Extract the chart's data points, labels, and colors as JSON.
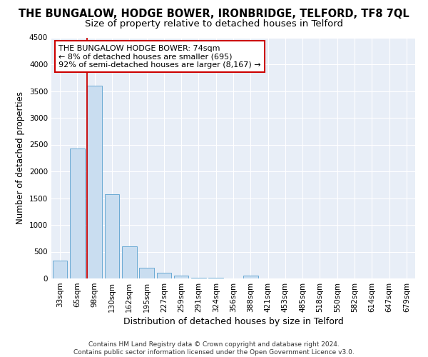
{
  "title": "THE BUNGALOW, HODGE BOWER, IRONBRIDGE, TELFORD, TF8 7QL",
  "subtitle": "Size of property relative to detached houses in Telford",
  "xlabel": "Distribution of detached houses by size in Telford",
  "ylabel": "Number of detached properties",
  "footer_line1": "Contains HM Land Registry data © Crown copyright and database right 2024.",
  "footer_line2": "Contains public sector information licensed under the Open Government Licence v3.0.",
  "bar_labels": [
    "33sqm",
    "65sqm",
    "98sqm",
    "130sqm",
    "162sqm",
    "195sqm",
    "227sqm",
    "259sqm",
    "291sqm",
    "324sqm",
    "356sqm",
    "388sqm",
    "421sqm",
    "453sqm",
    "485sqm",
    "518sqm",
    "550sqm",
    "582sqm",
    "614sqm",
    "647sqm",
    "679sqm"
  ],
  "bar_values": [
    330,
    2430,
    3600,
    1580,
    600,
    200,
    105,
    55,
    10,
    10,
    5,
    55,
    5,
    5,
    5,
    5,
    5,
    5,
    5,
    5,
    5
  ],
  "bar_color": "#c9ddf0",
  "bar_edge_color": "#6aaad4",
  "property_line_color": "#cc0000",
  "property_line_x": 1.55,
  "annotation_line1": "THE BUNGALOW HODGE BOWER: 74sqm",
  "annotation_line2": "← 8% of detached houses are smaller (695)",
  "annotation_line3": "92% of semi-detached houses are larger (8,167) →",
  "annotation_box_color": "#ffffff",
  "annotation_box_edge": "#cc0000",
  "ylim": [
    0,
    4500
  ],
  "yticks": [
    0,
    500,
    1000,
    1500,
    2000,
    2500,
    3000,
    3500,
    4000,
    4500
  ],
  "plot_bg_color": "#e8eef7",
  "title_fontsize": 10.5,
  "subtitle_fontsize": 9.5,
  "xlabel_fontsize": 9,
  "ylabel_fontsize": 8.5,
  "tick_fontsize": 7.5,
  "annot_fontsize": 8,
  "footer_fontsize": 6.5
}
